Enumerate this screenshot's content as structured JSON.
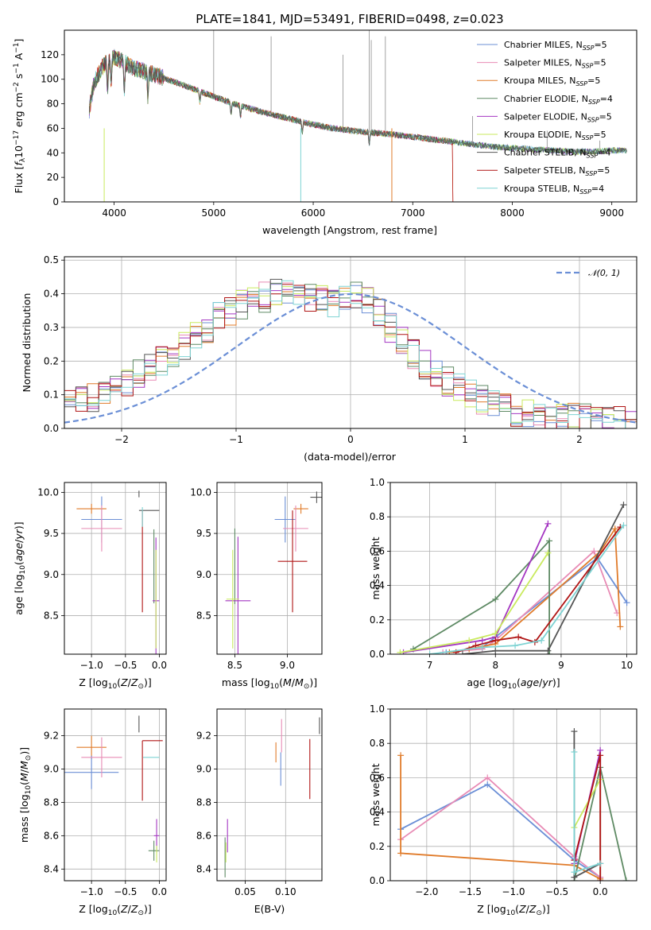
{
  "figure_title": "PLATE=1841, MJD=53491, FIBERID=0498, z=0.023",
  "colors": {
    "Chabrier MILES": "#6b8fd6",
    "Salpeter MILES": "#e88bb5",
    "Kroupa MILES": "#e07b2a",
    "Chabrier ELODIE": "#5e8a64",
    "Salpeter ELODIE": "#a437c2",
    "Kroupa ELODIE": "#c9ea5e",
    "Chabrier STELIB": "#555555",
    "Salpeter STELIB": "#b01515",
    "Kroupa STELIB": "#7ed3d3"
  },
  "chart_data": [
    {
      "id": "spectrum",
      "type": "line",
      "xlabel": "wavelength [Angstrom, rest frame]",
      "ylabel": "Flux [f_λ 10^-17 erg cm^-2 s^-1 A^-1]",
      "xlim": [
        3500,
        9250
      ],
      "ylim": [
        0,
        140
      ],
      "xticks": [
        4000,
        5000,
        6000,
        7000,
        8000,
        9000
      ],
      "yticks": [
        0,
        20,
        40,
        60,
        80,
        100,
        120
      ],
      "legend_placement": "top-right",
      "continuum": {
        "x": [
          3750,
          3800,
          3900,
          4000,
          4100,
          4200,
          4400,
          4600,
          4800,
          5000,
          5200,
          5500,
          5800,
          6000,
          6200,
          6500,
          6800,
          7000,
          7200,
          7400,
          7600,
          7800,
          8000,
          8200,
          8400,
          8600,
          8800,
          9000,
          9200
        ],
        "y": [
          75,
          98,
          112,
          118,
          114,
          109,
          104,
          98,
          92,
          86,
          80,
          73,
          67,
          63,
          60,
          57,
          55,
          53,
          51,
          49,
          47,
          45,
          44,
          43,
          42,
          41,
          41,
          42,
          42
        ]
      },
      "series": [
        {
          "name": "Chabrier MILES",
          "nssp": "5"
        },
        {
          "name": "Salpeter MILES",
          "nssp": "5"
        },
        {
          "name": "Kroupa MILES",
          "nssp": "5"
        },
        {
          "name": "Chabrier ELODIE",
          "nssp": "4"
        },
        {
          "name": "Salpeter ELODIE",
          "nssp": "5"
        },
        {
          "name": "Kroupa ELODIE",
          "nssp": "5"
        },
        {
          "name": "Chabrier STELIB",
          "nssp": "4"
        },
        {
          "name": "Salpeter STELIB",
          "nssp": "5"
        },
        {
          "name": "Kroupa STELIB",
          "nssp": "4"
        }
      ]
    },
    {
      "id": "residuals",
      "type": "line",
      "xlabel": "(data-model)/error",
      "ylabel": "Normed distribution",
      "xlim": [
        -2.5,
        2.5
      ],
      "ylim": [
        0,
        0.51
      ],
      "xticks": [
        -2,
        -1,
        0,
        1,
        2
      ],
      "yticks": [
        0.0,
        0.1,
        0.2,
        0.3,
        0.4,
        0.5
      ],
      "grid": true,
      "legend_placement": "top-right",
      "reference_curve": {
        "name": "N(0,1)",
        "mean": 0,
        "sigma": 1
      },
      "histogram_centers": [
        -2.45,
        -2.35,
        -2.25,
        -2.15,
        -2.05,
        -1.95,
        -1.85,
        -1.75,
        -1.65,
        -1.55,
        -1.45,
        -1.35,
        -1.25,
        -1.15,
        -1.05,
        -0.95,
        -0.85,
        -0.75,
        -0.65,
        -0.55,
        -0.45,
        -0.35,
        -0.25,
        -0.15,
        -0.05,
        0.05,
        0.15,
        0.25,
        0.35,
        0.45,
        0.55,
        0.65,
        0.75,
        0.85,
        0.95,
        1.05,
        1.15,
        1.25,
        1.35,
        1.45,
        1.55,
        1.65,
        1.75,
        1.85,
        1.95,
        2.05,
        2.15,
        2.25,
        2.35,
        2.45
      ],
      "histogram_base": [
        0.07,
        0.08,
        0.09,
        0.11,
        0.12,
        0.14,
        0.16,
        0.18,
        0.2,
        0.22,
        0.25,
        0.27,
        0.3,
        0.33,
        0.35,
        0.37,
        0.38,
        0.39,
        0.4,
        0.4,
        0.4,
        0.39,
        0.38,
        0.37,
        0.38,
        0.39,
        0.38,
        0.35,
        0.3,
        0.26,
        0.22,
        0.19,
        0.16,
        0.14,
        0.12,
        0.1,
        0.085,
        0.07,
        0.06,
        0.05,
        0.045,
        0.04,
        0.035,
        0.03,
        0.03,
        0.03,
        0.025,
        0.025,
        0.02,
        0.02
      ]
    },
    {
      "id": "age_vs_Z",
      "type": "scatter",
      "xlabel": "Z [log10(Z/Z⊙)]",
      "ylabel": "age [log10(age/yr)]",
      "xlim": [
        -1.4,
        0.1
      ],
      "ylim": [
        8.03,
        10.12
      ],
      "xticks": [
        -1.0,
        -0.5,
        0.0
      ],
      "yticks": [
        8.5,
        9.0,
        9.5,
        10.0
      ],
      "grid": true,
      "errorbars": [
        {
          "series": "Kroupa MILES",
          "x": -1.0,
          "xerr": 0.22,
          "y": 9.8,
          "yerr": 0.06
        },
        {
          "series": "Chabrier MILES",
          "x": -0.85,
          "xerr": 0.3,
          "y": 9.67,
          "yerr": 0.28
        },
        {
          "series": "Salpeter MILES",
          "x": -0.85,
          "xerr": 0.3,
          "y": 9.56,
          "yerr": 0.28
        },
        {
          "series": "Chabrier STELIB",
          "x": -0.3,
          "xerr": 0.0,
          "y": 9.98,
          "yerr": 0.04
        },
        {
          "series": "Chabrier STELIB",
          "x": -0.15,
          "xerr": 0.15,
          "y": 9.78,
          "yerr": 0.0
        },
        {
          "series": "Salpeter STELIB",
          "x": -0.25,
          "xerr": 0.0,
          "y": 9.16,
          "yerr": 0.62
        },
        {
          "series": "Kroupa STELIB",
          "x": -0.25,
          "xerr": 0.0,
          "y": 9.7,
          "yerr": 0.12
        },
        {
          "series": "Chabrier ELODIE",
          "x": -0.08,
          "xerr": 0.0,
          "y": 9.1,
          "yerr": 0.45
        },
        {
          "series": "Salpeter ELODIE",
          "x": -0.05,
          "xerr": 0.05,
          "y": 8.68,
          "yerr": 0.77
        },
        {
          "series": "Kroupa ELODIE",
          "x": -0.05,
          "xerr": 0.0,
          "y": 8.7,
          "yerr": 0.6
        }
      ]
    },
    {
      "id": "age_vs_mass",
      "type": "scatter",
      "xlabel": "mass [log10(M/M⊙)]",
      "ylabel": "",
      "xlim": [
        8.33,
        9.33
      ],
      "ylim": [
        8.03,
        10.12
      ],
      "xticks": [
        8.5,
        9.0
      ],
      "yticks": [
        8.5,
        9.0,
        9.5,
        10.0
      ],
      "grid": true,
      "errorbars": [
        {
          "series": "Kroupa MILES",
          "x": 9.13,
          "xerr": 0.07,
          "y": 9.8,
          "yerr": 0.06
        },
        {
          "series": "Chabrier MILES",
          "x": 8.98,
          "xerr": 0.1,
          "y": 9.67,
          "yerr": 0.28
        },
        {
          "series": "Salpeter MILES",
          "x": 9.08,
          "xerr": 0.12,
          "y": 9.56,
          "yerr": 0.28
        },
        {
          "series": "Salpeter STELIB",
          "x": 9.05,
          "xerr": 0.14,
          "y": 9.16,
          "yerr": 0.62
        },
        {
          "series": "Chabrier STELIB",
          "x": 9.28,
          "xerr": 0.06,
          "y": 9.94,
          "yerr": 0.07
        },
        {
          "series": "Chabrier ELODIE",
          "x": 8.5,
          "xerr": 0.0,
          "y": 9.1,
          "yerr": 0.46
        },
        {
          "series": "Salpeter ELODIE",
          "x": 8.53,
          "xerr": 0.12,
          "y": 8.68,
          "yerr": 0.78
        },
        {
          "series": "Kroupa ELODIE",
          "x": 8.48,
          "xerr": 0.06,
          "y": 8.7,
          "yerr": 0.6
        }
      ]
    },
    {
      "id": "massweight_vs_age",
      "type": "line",
      "xlabel": "age [log10(age/yr)]",
      "ylabel": "mass weight",
      "xlim": [
        6.4,
        10.15
      ],
      "ylim": [
        0,
        1
      ],
      "xticks": [
        7,
        8,
        9,
        10
      ],
      "yticks": [
        0.0,
        0.2,
        0.4,
        0.6,
        0.8,
        1.0
      ],
      "grid": true,
      "series": [
        {
          "name": "Chabrier MILES",
          "x": [
            7.25,
            7.8,
            8.0,
            9.55,
            10.0
          ],
          "y": [
            0.01,
            0.04,
            0.1,
            0.56,
            0.3
          ]
        },
        {
          "name": "Salpeter MILES",
          "x": [
            7.2,
            7.8,
            8.0,
            9.5,
            9.85
          ],
          "y": [
            0.01,
            0.03,
            0.08,
            0.6,
            0.24
          ]
        },
        {
          "name": "Kroupa MILES",
          "x": [
            7.3,
            7.6,
            8.0,
            9.6,
            9.82,
            9.9
          ],
          "y": [
            0.01,
            0.03,
            0.06,
            0.6,
            0.73,
            0.16
          ]
        },
        {
          "name": "Chabrier ELODIE",
          "x": [
            6.75,
            8.0,
            8.82,
            8.82
          ],
          "y": [
            0.03,
            0.32,
            0.66,
            0.0
          ]
        },
        {
          "name": "Salpeter ELODIE",
          "x": [
            6.6,
            7.8,
            8.0,
            8.8
          ],
          "y": [
            0.01,
            0.08,
            0.1,
            0.76
          ]
        },
        {
          "name": "Kroupa ELODIE",
          "x": [
            6.55,
            7.6,
            8.0,
            8.8
          ],
          "y": [
            0.01,
            0.08,
            0.12,
            0.59
          ]
        },
        {
          "name": "Chabrier STELIB",
          "x": [
            7.5,
            8.0,
            8.8,
            9.95
          ],
          "y": [
            0.0,
            0.02,
            0.02,
            0.87
          ]
        },
        {
          "name": "Salpeter STELIB",
          "x": [
            7.4,
            7.7,
            8.0,
            8.35,
            8.6,
            9.9
          ],
          "y": [
            0.01,
            0.05,
            0.08,
            0.1,
            0.07,
            0.74
          ]
        },
        {
          "name": "Kroupa STELIB",
          "x": [
            7.0,
            7.8,
            8.3,
            8.7,
            9.95
          ],
          "y": [
            0.0,
            0.04,
            0.05,
            0.08,
            0.75
          ]
        }
      ]
    },
    {
      "id": "mass_vs_Z",
      "type": "scatter",
      "xlabel": "Z [log10(Z/Z⊙)]",
      "ylabel": "mass [log10(M/M⊙)]",
      "xlim": [
        -1.4,
        0.1
      ],
      "ylim": [
        8.33,
        9.36
      ],
      "xticks": [
        -1.0,
        -0.5,
        0.0
      ],
      "yticks": [
        8.4,
        8.6,
        8.8,
        9.0,
        9.2
      ],
      "grid": true,
      "errorbars": [
        {
          "series": "Kroupa MILES",
          "x": -1.0,
          "xerr": 0.22,
          "y": 9.13,
          "yerr": 0.07
        },
        {
          "series": "Chabrier MILES",
          "x": -1.0,
          "xerr": 0.4,
          "y": 8.98,
          "yerr": 0.1
        },
        {
          "series": "Salpeter MILES",
          "x": -0.85,
          "xerr": 0.3,
          "y": 9.07,
          "yerr": 0.12
        },
        {
          "series": "Chabrier STELIB",
          "x": -0.3,
          "xerr": 0.0,
          "y": 9.27,
          "yerr": 0.05
        },
        {
          "series": "Salpeter STELIB",
          "x": -0.25,
          "xerr": 0.0,
          "y": 8.99,
          "yerr": 0.18
        },
        {
          "series": "Salpeter STELIB",
          "x": -0.1,
          "xerr": 0.15,
          "y": 9.17,
          "yerr": 0.0
        },
        {
          "series": "Kroupa STELIB",
          "x": -0.12,
          "xerr": 0.12,
          "y": 9.07,
          "yerr": 0.0
        },
        {
          "series": "Chabrier ELODIE",
          "x": -0.08,
          "xerr": 0.08,
          "y": 8.51,
          "yerr": 0.06
        },
        {
          "series": "Salpeter ELODIE",
          "x": -0.04,
          "xerr": 0.04,
          "y": 8.6,
          "yerr": 0.1
        },
        {
          "series": "Kroupa ELODIE",
          "x": -0.04,
          "xerr": 0.0,
          "y": 8.49,
          "yerr": 0.05
        }
      ]
    },
    {
      "id": "mass_vs_ebv",
      "type": "scatter",
      "xlabel": "E(B-V)",
      "ylabel": "",
      "xlim": [
        0.015,
        0.145
      ],
      "ylim": [
        8.33,
        9.36
      ],
      "xticks": [
        0.05,
        0.1
      ],
      "xtick_labels": [
        "0.05",
        "0.10"
      ],
      "yticks": [
        8.4,
        8.6,
        8.8,
        9.0,
        9.2
      ],
      "grid": true,
      "errorbars": [
        {
          "series": "Kroupa MILES",
          "x": 0.088,
          "xerr": 0.0,
          "y": 9.1,
          "yerr": 0.06
        },
        {
          "series": "Salpeter MILES",
          "x": 0.095,
          "xerr": 0.0,
          "y": 9.2,
          "yerr": 0.1
        },
        {
          "series": "Chabrier MILES",
          "x": 0.094,
          "xerr": 0.0,
          "y": 9.0,
          "yerr": 0.1
        },
        {
          "series": "Salpeter STELIB",
          "x": 0.13,
          "xerr": 0.0,
          "y": 9.0,
          "yerr": 0.18
        },
        {
          "series": "Chabrier STELIB",
          "x": 0.142,
          "xerr": 0.0,
          "y": 9.26,
          "yerr": 0.05
        },
        {
          "series": "Chabrier ELODIE",
          "x": 0.025,
          "xerr": 0.0,
          "y": 8.47,
          "yerr": 0.12
        },
        {
          "series": "Salpeter ELODIE",
          "x": 0.028,
          "xerr": 0.0,
          "y": 8.6,
          "yerr": 0.1
        },
        {
          "series": "Kroupa ELODIE",
          "x": 0.026,
          "xerr": 0.0,
          "y": 8.5,
          "yerr": 0.06
        }
      ]
    },
    {
      "id": "massweight_vs_Z",
      "type": "line",
      "xlabel": "Z [log10(Z/Z⊙)]",
      "ylabel": "mass weight",
      "xlim": [
        -2.42,
        0.42
      ],
      "ylim": [
        0,
        1
      ],
      "xticks": [
        -2.0,
        -1.5,
        -1.0,
        -0.5,
        0.0
      ],
      "yticks": [
        0.0,
        0.2,
        0.4,
        0.6,
        0.8,
        1.0
      ],
      "grid": true,
      "series": [
        {
          "name": "Chabrier MILES",
          "x": [
            -2.3,
            -1.3,
            -0.3,
            0.0
          ],
          "y": [
            0.3,
            0.56,
            0.12,
            0.02
          ]
        },
        {
          "name": "Salpeter MILES",
          "x": [
            -2.3,
            -1.3,
            -0.3,
            0.0
          ],
          "y": [
            0.24,
            0.6,
            0.14,
            0.02
          ]
        },
        {
          "name": "Kroupa MILES",
          "x": [
            -2.3,
            -2.3,
            -0.3,
            0.0
          ],
          "y": [
            0.73,
            0.16,
            0.09,
            0.01
          ]
        },
        {
          "name": "Chabrier ELODIE",
          "x": [
            -0.3,
            0.0,
            0.3
          ],
          "y": [
            0.0,
            0.66,
            0.0
          ]
        },
        {
          "name": "Salpeter ELODIE",
          "x": [
            -0.3,
            0.0,
            0.0
          ],
          "y": [
            0.1,
            0.76,
            0.0
          ]
        },
        {
          "name": "Kroupa ELODIE",
          "x": [
            -0.3,
            0.0,
            0.0
          ],
          "y": [
            0.31,
            0.59,
            0.0
          ]
        },
        {
          "name": "Chabrier STELIB",
          "x": [
            -0.3,
            -0.3,
            0.0
          ],
          "y": [
            0.87,
            0.02,
            0.1
          ]
        },
        {
          "name": "Salpeter STELIB",
          "x": [
            -0.3,
            0.0,
            0.0
          ],
          "y": [
            0.12,
            0.73,
            0.0
          ]
        },
        {
          "name": "Kroupa STELIB",
          "x": [
            -0.3,
            -0.3,
            0.0
          ],
          "y": [
            0.75,
            0.05,
            0.1
          ]
        }
      ]
    }
  ]
}
